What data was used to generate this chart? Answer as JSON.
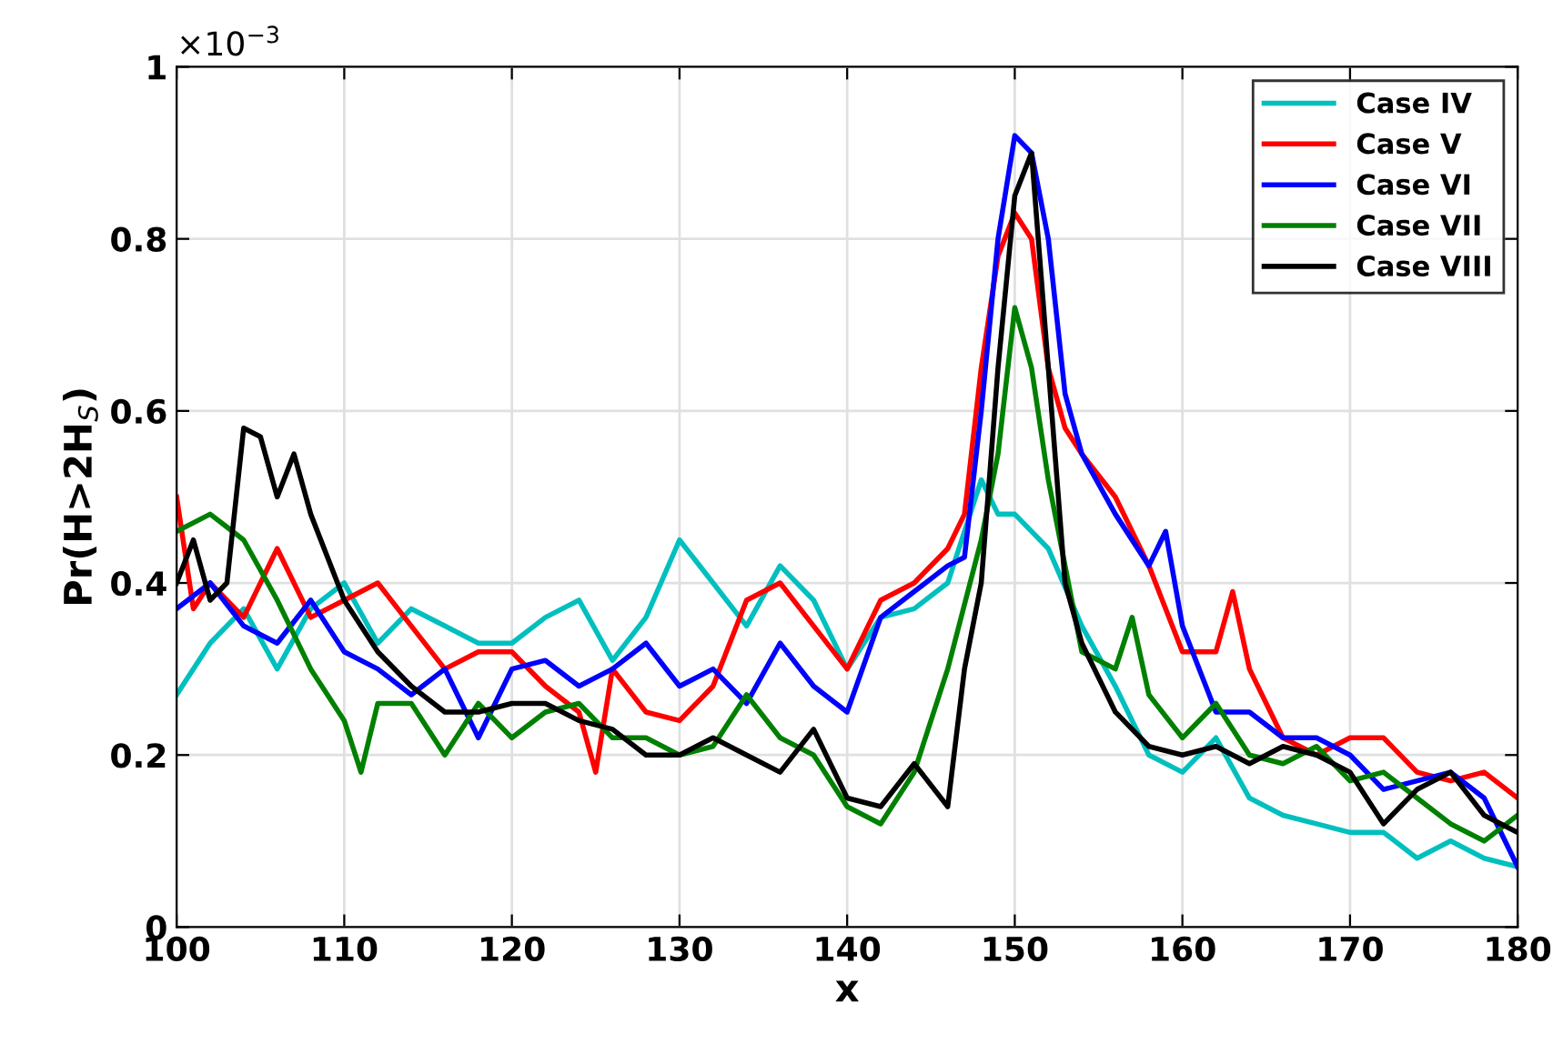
{
  "chart_data": {
    "type": "line",
    "xlabel": "x",
    "ylabel": "Pr(H>2H$_{S}$)",
    "annotations": [
      "×10$^{−3}$"
    ],
    "xlim": [
      100,
      180
    ],
    "xticks": [
      100,
      110,
      120,
      130,
      140,
      150,
      160,
      170,
      180
    ],
    "ylim": [
      0,
      1
    ],
    "yticks": [
      0,
      0.2,
      0.4,
      0.6,
      0.8,
      1
    ],
    "grid": true,
    "legend": "top right",
    "line_style": "solid",
    "marker": "none",
    "series": [
      {
        "name": "Case IV",
        "color": "#00bfbf",
        "x": [
          100,
          102,
          104,
          106,
          108,
          110,
          112,
          114,
          116,
          118,
          120,
          122,
          124,
          126,
          128,
          130,
          132,
          134,
          136,
          138,
          140,
          142,
          144,
          146,
          148,
          149,
          150,
          152,
          154,
          156,
          158,
          160,
          162,
          164,
          166,
          168,
          170,
          172,
          174,
          176,
          178,
          180
        ],
        "values": [
          0.27,
          0.33,
          0.37,
          0.3,
          0.37,
          0.4,
          0.33,
          0.37,
          0.35,
          0.33,
          0.33,
          0.36,
          0.38,
          0.31,
          0.36,
          0.45,
          0.4,
          0.35,
          0.42,
          0.38,
          0.3,
          0.36,
          0.37,
          0.4,
          0.52,
          0.48,
          0.48,
          0.44,
          0.35,
          0.28,
          0.2,
          0.18,
          0.22,
          0.15,
          0.13,
          0.12,
          0.11,
          0.11,
          0.08,
          0.1,
          0.08,
          0.07
        ]
      },
      {
        "name": "Case V",
        "color": "#ff0000",
        "x": [
          100,
          101,
          102,
          104,
          106,
          108,
          110,
          112,
          114,
          116,
          118,
          120,
          122,
          124,
          125,
          126,
          128,
          130,
          132,
          134,
          136,
          138,
          140,
          142,
          144,
          146,
          147,
          148,
          149,
          150,
          151,
          152,
          153,
          154,
          156,
          158,
          160,
          162,
          163,
          164,
          166,
          168,
          170,
          172,
          174,
          176,
          178,
          180
        ],
        "values": [
          0.5,
          0.37,
          0.4,
          0.36,
          0.44,
          0.36,
          0.38,
          0.4,
          0.35,
          0.3,
          0.32,
          0.32,
          0.28,
          0.25,
          0.18,
          0.3,
          0.25,
          0.24,
          0.28,
          0.38,
          0.4,
          0.35,
          0.3,
          0.38,
          0.4,
          0.44,
          0.48,
          0.65,
          0.78,
          0.83,
          0.8,
          0.65,
          0.58,
          0.55,
          0.5,
          0.42,
          0.32,
          0.32,
          0.39,
          0.3,
          0.22,
          0.2,
          0.22,
          0.22,
          0.18,
          0.17,
          0.18,
          0.15
        ]
      },
      {
        "name": "Case VI",
        "color": "#0000ff",
        "x": [
          100,
          102,
          104,
          106,
          108,
          110,
          112,
          114,
          116,
          118,
          120,
          122,
          124,
          126,
          128,
          130,
          132,
          134,
          136,
          138,
          140,
          142,
          144,
          146,
          147,
          148,
          149,
          150,
          151,
          152,
          153,
          154,
          156,
          158,
          159,
          160,
          162,
          164,
          166,
          168,
          170,
          172,
          174,
          176,
          178,
          180
        ],
        "values": [
          0.37,
          0.4,
          0.35,
          0.33,
          0.38,
          0.32,
          0.3,
          0.27,
          0.3,
          0.22,
          0.3,
          0.31,
          0.28,
          0.3,
          0.33,
          0.28,
          0.3,
          0.26,
          0.33,
          0.28,
          0.25,
          0.36,
          0.39,
          0.42,
          0.43,
          0.6,
          0.8,
          0.92,
          0.9,
          0.8,
          0.62,
          0.55,
          0.48,
          0.42,
          0.46,
          0.35,
          0.25,
          0.25,
          0.22,
          0.22,
          0.2,
          0.16,
          0.17,
          0.18,
          0.15,
          0.07
        ]
      },
      {
        "name": "Case VII",
        "color": "#008000",
        "x": [
          100,
          102,
          104,
          106,
          108,
          110,
          111,
          112,
          114,
          116,
          118,
          120,
          122,
          124,
          126,
          128,
          130,
          132,
          134,
          136,
          138,
          140,
          142,
          144,
          146,
          148,
          149,
          150,
          151,
          152,
          154,
          156,
          157,
          158,
          160,
          162,
          164,
          166,
          168,
          170,
          172,
          174,
          176,
          178,
          180
        ],
        "values": [
          0.46,
          0.48,
          0.45,
          0.38,
          0.3,
          0.24,
          0.18,
          0.26,
          0.26,
          0.2,
          0.26,
          0.22,
          0.25,
          0.26,
          0.22,
          0.22,
          0.2,
          0.21,
          0.27,
          0.22,
          0.2,
          0.14,
          0.12,
          0.18,
          0.3,
          0.45,
          0.55,
          0.72,
          0.65,
          0.52,
          0.32,
          0.3,
          0.36,
          0.27,
          0.22,
          0.26,
          0.2,
          0.19,
          0.21,
          0.17,
          0.18,
          0.15,
          0.12,
          0.1,
          0.13
        ]
      },
      {
        "name": "Case VIII",
        "color": "#000000",
        "x": [
          100,
          101,
          102,
          103,
          104,
          105,
          106,
          107,
          108,
          110,
          112,
          114,
          116,
          118,
          120,
          122,
          124,
          126,
          128,
          130,
          132,
          134,
          136,
          138,
          140,
          142,
          144,
          146,
          147,
          148,
          149,
          150,
          151,
          152,
          153,
          154,
          156,
          158,
          160,
          162,
          164,
          166,
          168,
          170,
          172,
          174,
          176,
          178,
          180
        ],
        "values": [
          0.4,
          0.45,
          0.38,
          0.4,
          0.58,
          0.57,
          0.5,
          0.55,
          0.48,
          0.38,
          0.32,
          0.28,
          0.25,
          0.25,
          0.26,
          0.26,
          0.24,
          0.23,
          0.2,
          0.2,
          0.22,
          0.2,
          0.18,
          0.23,
          0.15,
          0.14,
          0.19,
          0.14,
          0.3,
          0.4,
          0.65,
          0.85,
          0.9,
          0.65,
          0.4,
          0.33,
          0.25,
          0.21,
          0.2,
          0.21,
          0.19,
          0.21,
          0.2,
          0.18,
          0.12,
          0.16,
          0.18,
          0.13,
          0.11
        ]
      }
    ]
  }
}
